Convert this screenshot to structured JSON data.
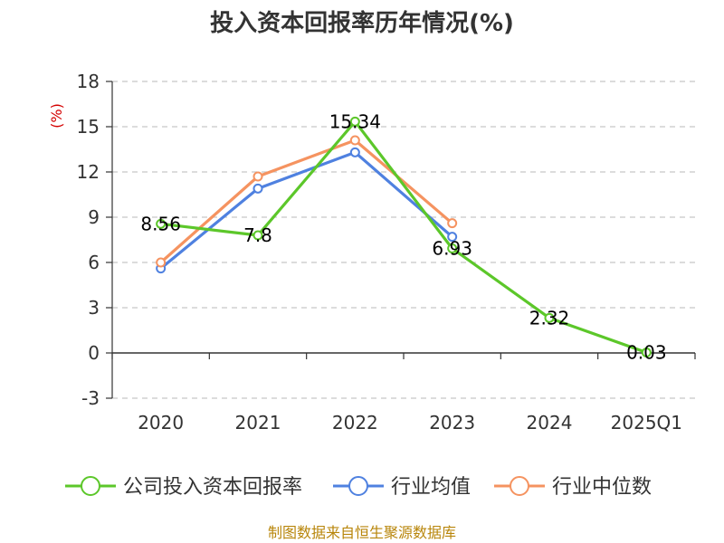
{
  "chart_data": {
    "type": "line",
    "title": "投入资本回报率历年情况(%)",
    "ylabel": "(%)",
    "categories": [
      "2020",
      "2021",
      "2022",
      "2023",
      "2024",
      "2025Q1"
    ],
    "ylim": [
      -3,
      18
    ],
    "yticks": [
      18,
      15,
      12,
      9,
      6,
      3,
      0,
      -3
    ],
    "grid": true,
    "legend_position": "bottom",
    "series": [
      {
        "name": "公司投入资本回报率",
        "color": "#5cc72a",
        "values": [
          8.56,
          7.8,
          15.34,
          6.93,
          2.32,
          0.03
        ],
        "labels": [
          "8.56",
          "7.8",
          "15.34",
          "6.93",
          "2.32",
          "0.03"
        ]
      },
      {
        "name": "行业均值",
        "color": "#4f81e0",
        "values": [
          5.6,
          10.9,
          13.3,
          7.7,
          null,
          null
        ]
      },
      {
        "name": "行业中位数",
        "color": "#f59360",
        "values": [
          6.0,
          11.7,
          14.1,
          8.6,
          null,
          null
        ]
      }
    ]
  },
  "source": "制图数据来自恒生聚源数据库"
}
